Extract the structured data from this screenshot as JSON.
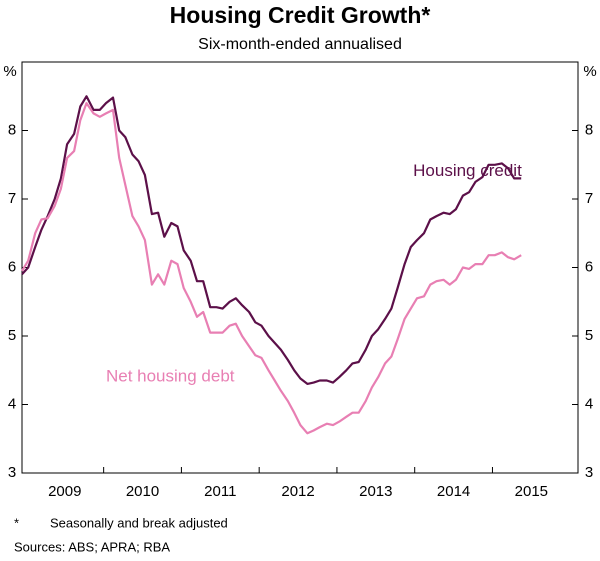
{
  "chart_data": {
    "type": "line",
    "title": "Housing Credit Growth*",
    "subtitle": "Six-month-ended annualised",
    "y_unit_left": "%",
    "y_unit_right": "%",
    "footnote_mark": "*",
    "footnote": "Seasonally and break adjusted",
    "sources": "Sources:  ABS; APRA; RBA",
    "xlim": [
      2008.95,
      2016.1
    ],
    "ylim": [
      3,
      9
    ],
    "yticks": [
      3,
      4,
      5,
      6,
      7,
      8
    ],
    "xticks": [
      {
        "value": 2009.5,
        "label": "2009"
      },
      {
        "value": 2010.5,
        "label": "2010"
      },
      {
        "value": 2011.5,
        "label": "2011"
      },
      {
        "value": 2012.5,
        "label": "2012"
      },
      {
        "value": 2013.5,
        "label": "2013"
      },
      {
        "value": 2014.5,
        "label": "2014"
      },
      {
        "value": 2015.5,
        "label": "2015"
      }
    ],
    "x": [
      2008.95,
      2009.03,
      2009.12,
      2009.2,
      2009.28,
      2009.37,
      2009.45,
      2009.53,
      2009.62,
      2009.7,
      2009.78,
      2009.87,
      2009.95,
      2010.03,
      2010.12,
      2010.2,
      2010.28,
      2010.37,
      2010.45,
      2010.53,
      2010.62,
      2010.7,
      2010.78,
      2010.87,
      2010.95,
      2011.03,
      2011.12,
      2011.2,
      2011.28,
      2011.37,
      2011.45,
      2011.53,
      2011.62,
      2011.7,
      2011.78,
      2011.87,
      2011.95,
      2012.03,
      2012.12,
      2012.2,
      2012.28,
      2012.37,
      2012.45,
      2012.53,
      2012.62,
      2012.7,
      2012.78,
      2012.87,
      2012.95,
      2013.03,
      2013.12,
      2013.2,
      2013.28,
      2013.37,
      2013.45,
      2013.53,
      2013.62,
      2013.7,
      2013.78,
      2013.87,
      2013.95,
      2014.03,
      2014.12,
      2014.2,
      2014.28,
      2014.37,
      2014.45,
      2014.53,
      2014.62,
      2014.7,
      2014.78,
      2014.87,
      2014.95,
      2015.03,
      2015.12,
      2015.2,
      2015.28,
      2015.37
    ],
    "series": [
      {
        "name": "Housing credit",
        "color": "#5c1049",
        "label_at": [
          2013.98,
          7.4
        ],
        "values": [
          5.9,
          6.0,
          6.3,
          6.55,
          6.75,
          7.0,
          7.3,
          7.8,
          7.95,
          8.35,
          8.5,
          8.3,
          8.3,
          8.4,
          8.48,
          8.0,
          7.9,
          7.65,
          7.55,
          7.35,
          6.78,
          6.8,
          6.45,
          6.65,
          6.6,
          6.25,
          6.1,
          5.8,
          5.8,
          5.42,
          5.42,
          5.4,
          5.5,
          5.55,
          5.45,
          5.35,
          5.2,
          5.15,
          5.0,
          4.9,
          4.8,
          4.65,
          4.5,
          4.38,
          4.3,
          4.32,
          4.35,
          4.35,
          4.32,
          4.4,
          4.5,
          4.6,
          4.62,
          4.8,
          5.0,
          5.1,
          5.25,
          5.4,
          5.7,
          6.05,
          6.3,
          6.4,
          6.5,
          6.7,
          6.75,
          6.8,
          6.78,
          6.85,
          7.05,
          7.1,
          7.25,
          7.32,
          7.5,
          7.5,
          7.52,
          7.45,
          7.3,
          7.3
        ]
      },
      {
        "name": "Net housing debt",
        "color": "#e87fb3",
        "label_at": [
          2010.03,
          4.4
        ],
        "values": [
          5.95,
          6.1,
          6.5,
          6.7,
          6.72,
          6.9,
          7.15,
          7.6,
          7.7,
          8.15,
          8.4,
          8.25,
          8.2,
          8.25,
          8.3,
          7.6,
          7.2,
          6.75,
          6.6,
          6.4,
          5.75,
          5.9,
          5.75,
          6.1,
          6.05,
          5.7,
          5.5,
          5.28,
          5.35,
          5.05,
          5.05,
          5.05,
          5.15,
          5.18,
          5.0,
          4.85,
          4.72,
          4.68,
          4.5,
          4.35,
          4.2,
          4.05,
          3.88,
          3.7,
          3.58,
          3.62,
          3.67,
          3.72,
          3.7,
          3.75,
          3.82,
          3.88,
          3.88,
          4.05,
          4.25,
          4.4,
          4.6,
          4.7,
          4.95,
          5.25,
          5.4,
          5.55,
          5.58,
          5.75,
          5.8,
          5.82,
          5.75,
          5.82,
          6.0,
          5.98,
          6.05,
          6.05,
          6.18,
          6.18,
          6.22,
          6.15,
          6.12,
          6.18
        ]
      }
    ]
  }
}
